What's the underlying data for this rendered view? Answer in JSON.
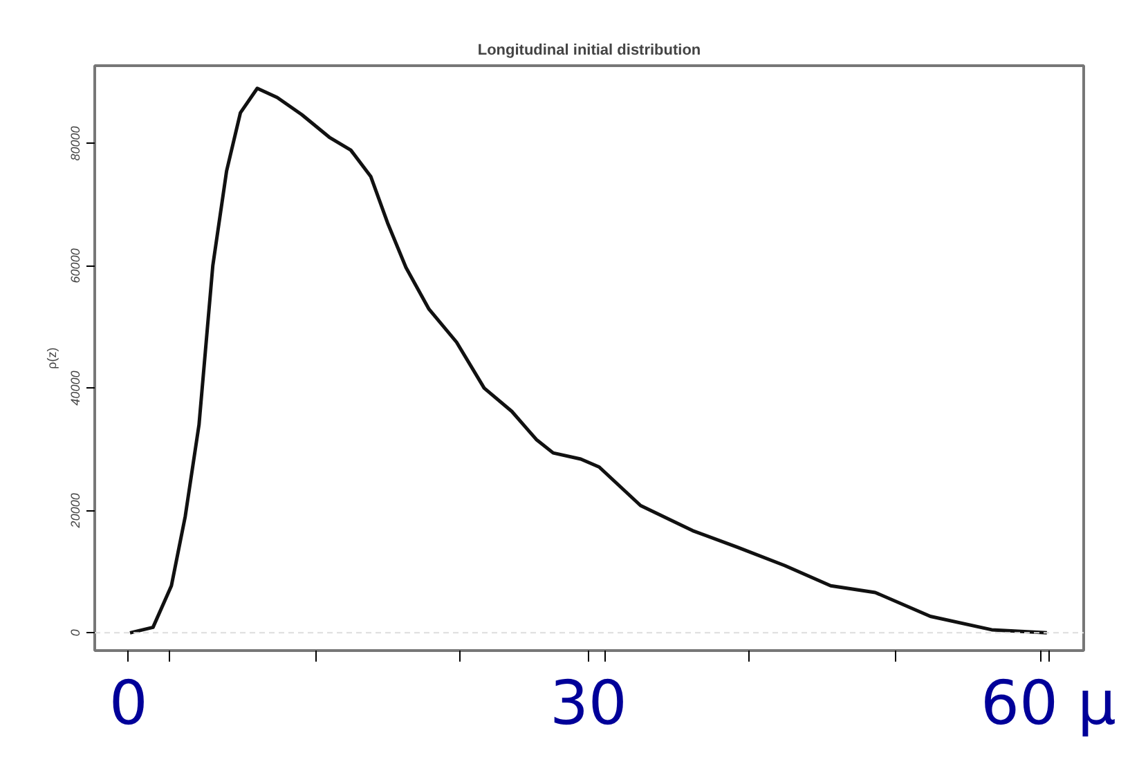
{
  "chart_data": {
    "type": "line",
    "title": "Longitudinal initial distribution",
    "ylabel": "ρ(z)",
    "x": [
      0.1,
      1.6,
      2.8,
      3.7,
      4.6,
      5.5,
      6.4,
      7.3,
      8.4,
      9.7,
      11.3,
      13.1,
      14.5,
      15.8,
      16.9,
      18.1,
      19.6,
      21.4,
      23.2,
      25.0,
      26.6,
      27.7,
      29.5,
      30.7,
      33.4,
      36.8,
      39.7,
      42.8,
      45.8,
      48.7,
      52.3,
      56.3,
      59.9
    ],
    "series": [
      {
        "color": "#111111",
        "values": [
          0,
          900,
          7700,
          19000,
          34000,
          60000,
          75500,
          85000,
          89000,
          87500,
          84700,
          81000,
          78900,
          74600,
          67000,
          59700,
          52900,
          47500,
          40000,
          36200,
          31600,
          29400,
          28400,
          27100,
          20800,
          16700,
          14000,
          11000,
          7700,
          6600,
          2700,
          500,
          0
        ]
      }
    ],
    "xlim": [
      -2.2,
      62.3
    ],
    "ylim": [
      -2900,
      92700
    ],
    "xticks": [
      {
        "value": 0,
        "label": "0"
      },
      {
        "value": 30,
        "label": "30"
      },
      {
        "value": 60,
        "label": "60 µ"
      },
      {
        "value": 2.7,
        "label": null
      },
      {
        "value": 12.2,
        "label": null
      },
      {
        "value": 21.6,
        "label": null
      },
      {
        "value": 31.1,
        "label": null
      },
      {
        "value": 40.5,
        "label": null
      },
      {
        "value": 50,
        "label": null
      },
      {
        "value": 59.5,
        "label": null
      }
    ],
    "yticks": [
      0,
      20000,
      40000,
      60000,
      80000
    ],
    "ref_lines": [
      {
        "axis": "y",
        "value": 0,
        "color": "#dddddd",
        "line_style": "dashed"
      }
    ],
    "grid": false,
    "marker": "none",
    "line_style": "solid"
  }
}
